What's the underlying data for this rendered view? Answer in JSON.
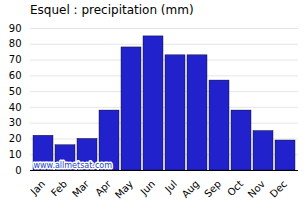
{
  "chart_data": {
    "type": "bar",
    "title": "Esquel : precipitation (mm)",
    "categories": [
      "Jan",
      "Feb",
      "Mar",
      "Apr",
      "May",
      "Jun",
      "Jul",
      "Aug",
      "Sep",
      "Oct",
      "Nov",
      "Dec"
    ],
    "values": [
      22,
      16,
      20,
      38,
      78,
      85,
      73,
      73,
      57,
      38,
      25,
      19
    ],
    "color": "#2222cc",
    "ylim": [
      0,
      90
    ],
    "yticks": [
      0,
      10,
      20,
      30,
      40,
      50,
      60,
      70,
      80,
      90
    ],
    "grid": true,
    "annotations": [
      "www.allmetsat.com"
    ]
  }
}
